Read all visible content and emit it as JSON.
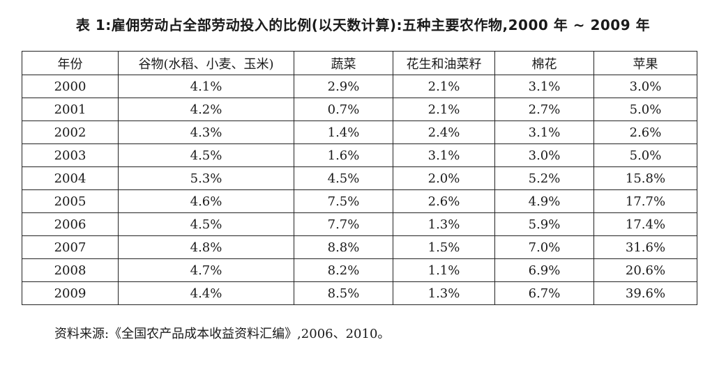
{
  "title": "表 1:雇佣劳动占全部劳动投入的比例(以天数计算):五种主要农作物,2000 年 ~ 2009 年",
  "table": {
    "headers": [
      "年份",
      "谷物(水稻、小麦、玉米)",
      "蔬菜",
      "花生和油菜籽",
      "棉花",
      "苹果"
    ],
    "rows": [
      [
        "2000",
        "4.1%",
        "2.9%",
        "2.1%",
        "3.1%",
        "3.0%"
      ],
      [
        "2001",
        "4.2%",
        "0.7%",
        "2.1%",
        "2.7%",
        "5.0%"
      ],
      [
        "2002",
        "4.3%",
        "1.4%",
        "2.4%",
        "3.1%",
        "2.6%"
      ],
      [
        "2003",
        "4.5%",
        "1.6%",
        "3.1%",
        "3.0%",
        "5.0%"
      ],
      [
        "2004",
        "5.3%",
        "4.5%",
        "2.0%",
        "5.2%",
        "15.8%"
      ],
      [
        "2005",
        "4.6%",
        "7.5%",
        "2.6%",
        "4.9%",
        "17.7%"
      ],
      [
        "2006",
        "4.5%",
        "7.7%",
        "1.3%",
        "5.9%",
        "17.4%"
      ],
      [
        "2007",
        "4.8%",
        "8.8%",
        "1.5%",
        "7.0%",
        "31.6%"
      ],
      [
        "2008",
        "4.7%",
        "8.2%",
        "1.1%",
        "6.9%",
        "20.6%"
      ],
      [
        "2009",
        "4.4%",
        "8.5%",
        "1.3%",
        "6.7%",
        "39.6%"
      ]
    ]
  },
  "source": "资料来源:《全国农产品成本收益资料汇编》,2006、2010。"
}
